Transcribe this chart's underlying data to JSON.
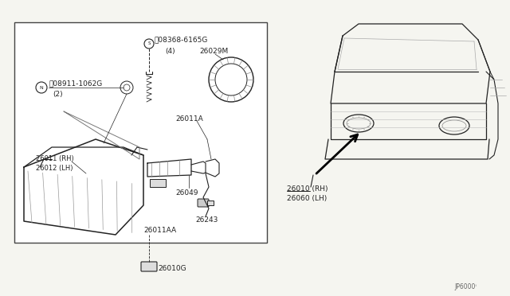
{
  "bg_color": "#f5f5f0",
  "line_color": "#555555",
  "dark_color": "#222222",
  "labels": {
    "s_label": "Ⓝ08368-6165G",
    "s_sub": "(4)",
    "n_label": "Ⓞ08911-1062G",
    "n_sub": "(2)",
    "p26029M": "26029M",
    "p26011A": "26011A",
    "p26011RH": "26011 (RH)",
    "p26012LH": "26012 (LH)",
    "p26049": "26049",
    "p26243": "26243",
    "p26011AA": "26011AA",
    "p26010G": "26010G",
    "p26010RH": "26010 (RH)",
    "p26060LH": "26060 (LH)",
    "diagram_code": "JP6000ⁱ"
  }
}
